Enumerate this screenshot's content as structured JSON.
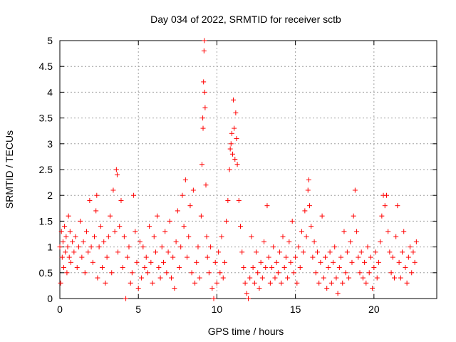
{
  "chart_data": {
    "type": "scatter",
    "title": "Day 034 of 2022, SRMTID for receiver sctb",
    "xlabel": "GPS time / hours",
    "ylabel": "SRMTID / TECUs",
    "xlim": [
      0,
      24
    ],
    "ylim": [
      0,
      5
    ],
    "xticks": [
      0,
      5,
      10,
      15,
      20
    ],
    "xtick_labels": [
      "0",
      "5",
      "10",
      "15",
      "20"
    ],
    "yticks": [
      0,
      0.5,
      1,
      1.5,
      2,
      2.5,
      3,
      3.5,
      4,
      4.5,
      5
    ],
    "ytick_labels": [
      "0",
      "0.5",
      "1",
      "1.5",
      "2",
      "2.5",
      "3",
      "3.5",
      "4",
      "4.5",
      "5"
    ],
    "grid": true,
    "marker": "+",
    "color": "#ff0000",
    "series": [
      {
        "name": "sctb",
        "points": [
          [
            0.0,
            1.0
          ],
          [
            0.05,
            0.3
          ],
          [
            0.1,
            1.3
          ],
          [
            0.15,
            0.8
          ],
          [
            0.2,
            1.1
          ],
          [
            0.25,
            0.6
          ],
          [
            0.3,
            1.4
          ],
          [
            0.35,
            0.9
          ],
          [
            0.4,
            1.2
          ],
          [
            0.45,
            0.5
          ],
          [
            0.5,
            1.0
          ],
          [
            0.55,
            1.6
          ],
          [
            0.6,
            0.8
          ],
          [
            0.65,
            1.3
          ],
          [
            0.7,
            0.7
          ],
          [
            0.8,
            1.1
          ],
          [
            0.9,
            0.9
          ],
          [
            1.0,
            1.2
          ],
          [
            1.1,
            0.6
          ],
          [
            1.2,
            1.0
          ],
          [
            1.3,
            1.5
          ],
          [
            1.4,
            0.8
          ],
          [
            1.5,
            1.1
          ],
          [
            1.6,
            0.5
          ],
          [
            1.7,
            1.3
          ],
          [
            1.8,
            0.9
          ],
          [
            1.9,
            1.9
          ],
          [
            2.0,
            1.0
          ],
          [
            2.1,
            0.7
          ],
          [
            2.2,
            1.2
          ],
          [
            2.3,
            1.7
          ],
          [
            2.35,
            2.0
          ],
          [
            2.4,
            0.4
          ],
          [
            2.5,
            1.0
          ],
          [
            2.6,
            1.4
          ],
          [
            2.7,
            0.6
          ],
          [
            2.8,
            1.1
          ],
          [
            2.9,
            0.3
          ],
          [
            3.0,
            0.8
          ],
          [
            3.1,
            1.2
          ],
          [
            3.2,
            1.6
          ],
          [
            3.3,
            0.5
          ],
          [
            3.4,
            2.1
          ],
          [
            3.5,
            1.3
          ],
          [
            3.6,
            2.5
          ],
          [
            3.65,
            2.4
          ],
          [
            3.7,
            0.9
          ],
          [
            3.8,
            1.4
          ],
          [
            3.9,
            1.9
          ],
          [
            4.0,
            0.6
          ],
          [
            4.1,
            1.2
          ],
          [
            4.2,
            0.0
          ],
          [
            4.3,
            0.8
          ],
          [
            4.4,
            1.0
          ],
          [
            4.5,
            0.3
          ],
          [
            4.6,
            0.5
          ],
          [
            4.7,
            2.0
          ],
          [
            4.8,
            1.3
          ],
          [
            4.9,
            0.7
          ],
          [
            5.0,
            0.2
          ],
          [
            5.1,
            1.1
          ],
          [
            5.2,
            0.4
          ],
          [
            5.3,
            1.0
          ],
          [
            5.4,
            0.6
          ],
          [
            5.5,
            0.8
          ],
          [
            5.6,
            0.5
          ],
          [
            5.7,
            1.4
          ],
          [
            5.8,
            0.7
          ],
          [
            5.9,
            0.3
          ],
          [
            6.0,
            1.2
          ],
          [
            6.1,
            0.9
          ],
          [
            6.2,
            1.6
          ],
          [
            6.3,
            0.6
          ],
          [
            6.4,
            0.4
          ],
          [
            6.5,
            1.0
          ],
          [
            6.6,
            0.7
          ],
          [
            6.7,
            1.3
          ],
          [
            6.8,
            0.5
          ],
          [
            6.9,
            0.9
          ],
          [
            7.0,
            1.5
          ],
          [
            7.1,
            0.4
          ],
          [
            7.2,
            0.8
          ],
          [
            7.3,
            0.2
          ],
          [
            7.4,
            1.1
          ],
          [
            7.5,
            1.7
          ],
          [
            7.6,
            0.6
          ],
          [
            7.7,
            1.0
          ],
          [
            7.8,
            2.0
          ],
          [
            7.9,
            1.4
          ],
          [
            8.0,
            2.3
          ],
          [
            8.1,
            0.8
          ],
          [
            8.2,
            1.2
          ],
          [
            8.3,
            1.8
          ],
          [
            8.4,
            0.5
          ],
          [
            8.5,
            2.1
          ],
          [
            8.6,
            0.3
          ],
          [
            8.7,
            0.7
          ],
          [
            8.8,
            1.0
          ],
          [
            8.9,
            0.4
          ],
          [
            9.0,
            1.6
          ],
          [
            9.05,
            2.6
          ],
          [
            9.1,
            3.5
          ],
          [
            9.12,
            3.3
          ],
          [
            9.15,
            4.2
          ],
          [
            9.18,
            4.8
          ],
          [
            9.2,
            5.0
          ],
          [
            9.22,
            4.0
          ],
          [
            9.25,
            3.7
          ],
          [
            9.3,
            2.2
          ],
          [
            9.35,
            1.2
          ],
          [
            9.4,
            0.8
          ],
          [
            9.5,
            0.5
          ],
          [
            9.6,
            1.0
          ],
          [
            9.7,
            0.2
          ],
          [
            9.8,
            0.0
          ],
          [
            9.9,
            0.7
          ],
          [
            10.0,
            0.3
          ],
          [
            10.1,
            0.9
          ],
          [
            10.2,
            0.5
          ],
          [
            10.3,
            1.2
          ],
          [
            10.4,
            0.4
          ],
          [
            10.5,
            0.7
          ],
          [
            10.6,
            1.5
          ],
          [
            10.7,
            1.9
          ],
          [
            10.8,
            2.5
          ],
          [
            10.85,
            2.9
          ],
          [
            10.9,
            3.0
          ],
          [
            10.95,
            3.2
          ],
          [
            11.0,
            2.8
          ],
          [
            11.05,
            3.85
          ],
          [
            11.1,
            3.3
          ],
          [
            11.15,
            2.7
          ],
          [
            11.2,
            3.6
          ],
          [
            11.25,
            3.1
          ],
          [
            11.3,
            2.6
          ],
          [
            11.4,
            1.9
          ],
          [
            11.5,
            1.4
          ],
          [
            11.6,
            0.9
          ],
          [
            11.7,
            0.6
          ],
          [
            11.8,
            0.3
          ],
          [
            11.9,
            0.1
          ],
          [
            12.0,
            0.0
          ],
          [
            12.1,
            0.4
          ],
          [
            12.2,
            1.2
          ],
          [
            12.3,
            0.6
          ],
          [
            12.4,
            0.3
          ],
          [
            12.5,
            0.9
          ],
          [
            12.6,
            0.5
          ],
          [
            12.7,
            0.2
          ],
          [
            12.8,
            0.7
          ],
          [
            12.9,
            0.4
          ],
          [
            13.0,
            1.1
          ],
          [
            13.1,
            0.6
          ],
          [
            13.2,
            1.8
          ],
          [
            13.3,
            0.8
          ],
          [
            13.4,
            0.3
          ],
          [
            13.5,
            0.6
          ],
          [
            13.6,
            1.0
          ],
          [
            13.7,
            0.4
          ],
          [
            13.8,
            0.7
          ],
          [
            13.9,
            0.5
          ],
          [
            14.0,
            0.9
          ],
          [
            14.1,
            0.3
          ],
          [
            14.2,
            1.2
          ],
          [
            14.3,
            0.6
          ],
          [
            14.4,
            0.8
          ],
          [
            14.5,
            0.4
          ],
          [
            14.6,
            1.1
          ],
          [
            14.7,
            0.7
          ],
          [
            14.8,
            1.5
          ],
          [
            14.9,
            0.5
          ],
          [
            15.0,
            0.8
          ],
          [
            15.1,
            0.3
          ],
          [
            15.2,
            1.0
          ],
          [
            15.3,
            0.6
          ],
          [
            15.4,
            1.3
          ],
          [
            15.5,
            0.9
          ],
          [
            15.6,
            1.7
          ],
          [
            15.7,
            1.2
          ],
          [
            15.8,
            2.1
          ],
          [
            15.85,
            2.3
          ],
          [
            15.9,
            1.8
          ],
          [
            16.0,
            1.4
          ],
          [
            16.1,
            0.8
          ],
          [
            16.2,
            1.1
          ],
          [
            16.3,
            0.5
          ],
          [
            16.4,
            0.9
          ],
          [
            16.5,
            0.3
          ],
          [
            16.6,
            0.7
          ],
          [
            16.7,
            1.6
          ],
          [
            16.8,
            0.4
          ],
          [
            16.9,
            0.8
          ],
          [
            17.0,
            0.2
          ],
          [
            17.1,
            0.6
          ],
          [
            17.2,
            0.9
          ],
          [
            17.3,
            0.3
          ],
          [
            17.4,
            0.7
          ],
          [
            17.5,
            1.0
          ],
          [
            17.6,
            0.4
          ],
          [
            17.7,
            0.1
          ],
          [
            17.8,
            0.6
          ],
          [
            17.9,
            0.8
          ],
          [
            18.0,
            0.3
          ],
          [
            18.1,
            1.3
          ],
          [
            18.2,
            0.5
          ],
          [
            18.3,
            0.9
          ],
          [
            18.4,
            0.4
          ],
          [
            18.5,
            1.1
          ],
          [
            18.6,
            0.7
          ],
          [
            18.7,
            1.6
          ],
          [
            18.8,
            2.1
          ],
          [
            18.9,
            1.3
          ],
          [
            19.0,
            0.8
          ],
          [
            19.1,
            0.5
          ],
          [
            19.2,
            0.9
          ],
          [
            19.3,
            0.4
          ],
          [
            19.4,
            0.7
          ],
          [
            19.5,
            0.3
          ],
          [
            19.6,
            1.0
          ],
          [
            19.7,
            0.5
          ],
          [
            19.8,
            0.8
          ],
          [
            19.9,
            0.2
          ],
          [
            20.0,
            0.6
          ],
          [
            20.1,
            0.9
          ],
          [
            20.2,
            0.4
          ],
          [
            20.3,
            0.7
          ],
          [
            20.4,
            1.1
          ],
          [
            20.5,
            1.6
          ],
          [
            20.6,
            2.0
          ],
          [
            20.7,
            1.8
          ],
          [
            20.8,
            2.0
          ],
          [
            20.9,
            1.3
          ],
          [
            21.0,
            0.9
          ],
          [
            21.1,
            0.5
          ],
          [
            21.2,
            0.8
          ],
          [
            21.3,
            0.4
          ],
          [
            21.4,
            1.2
          ],
          [
            21.5,
            1.8
          ],
          [
            21.6,
            0.7
          ],
          [
            21.7,
            0.4
          ],
          [
            21.8,
            0.9
          ],
          [
            21.9,
            1.3
          ],
          [
            22.0,
            0.6
          ],
          [
            22.1,
            0.3
          ],
          [
            22.2,
            0.8
          ],
          [
            22.3,
            1.0
          ],
          [
            22.4,
            0.5
          ],
          [
            22.5,
            0.9
          ],
          [
            22.6,
            0.7
          ],
          [
            22.7,
            1.1
          ]
        ]
      }
    ]
  }
}
